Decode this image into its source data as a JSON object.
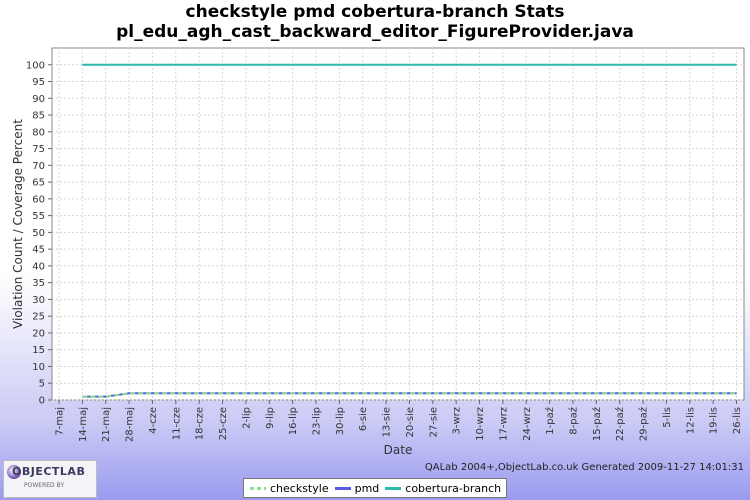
{
  "title": "checkstyle pmd cobertura-branch  Stats",
  "subtitle": "pl_edu_agh_cast_backward_editor_FigureProvider.java",
  "footer_text": "QALab 2004+,ObjectLab.co.uk Generated 2009-11-27 14:01:31",
  "logo": {
    "main": "OBJECTLAB",
    "sub": "POWERED BY"
  },
  "chart_data": {
    "type": "line",
    "title": "checkstyle pmd cobertura-branch  Stats",
    "subtitle": "pl_edu_agh_cast_backward_editor_FigureProvider.java",
    "xlabel": "Date",
    "ylabel": "Violation Count / Coverage Percent",
    "ylim": [
      0,
      105
    ],
    "yticks": [
      0,
      5,
      10,
      15,
      20,
      25,
      30,
      35,
      40,
      45,
      50,
      55,
      60,
      65,
      70,
      75,
      80,
      85,
      90,
      95,
      100
    ],
    "grid": true,
    "legend_position": "bottom",
    "categories": [
      "7-maj",
      "14-maj",
      "21-maj",
      "28-maj",
      "4-cze",
      "11-cze",
      "18-cze",
      "25-cze",
      "2-lip",
      "9-lip",
      "16-lip",
      "23-lip",
      "30-lip",
      "6-sie",
      "13-sie",
      "20-sie",
      "27-sie",
      "3-wrz",
      "10-wrz",
      "17-wrz",
      "24-wrz",
      "1-paź",
      "8-paź",
      "15-paź",
      "22-paź",
      "29-paź",
      "5-lis",
      "12-lis",
      "19-lis",
      "26-lis"
    ],
    "series": [
      {
        "name": "checkstyle",
        "color": "#8ee08e",
        "dash": true,
        "points": [
          [
            "14-maj",
            1
          ],
          [
            "21-maj",
            1
          ],
          [
            "28-maj",
            2
          ],
          [
            "26-lis",
            2
          ]
        ]
      },
      {
        "name": "pmd",
        "color": "#5a5ae6",
        "dash": false,
        "points": [
          [
            "14-maj",
            1
          ],
          [
            "21-maj",
            1
          ],
          [
            "28-maj",
            2
          ],
          [
            "26-lis",
            2
          ]
        ]
      },
      {
        "name": "cobertura-branch",
        "color": "#2fb8b0",
        "dash": false,
        "points": [
          [
            "14-maj",
            100
          ],
          [
            "26-lis",
            100
          ]
        ]
      }
    ]
  }
}
